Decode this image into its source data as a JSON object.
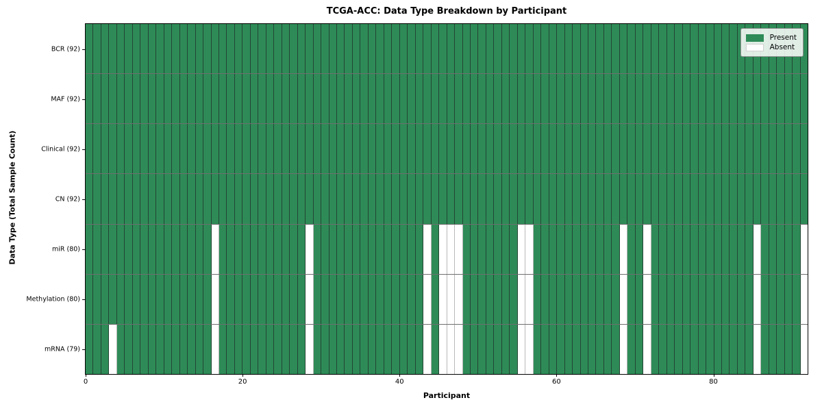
{
  "title": "TCGA-ACC: Data Type Breakdown by Participant",
  "x_axis_label": "Participant",
  "y_axis_label": "Data Type (Total Sample Count)",
  "legend": {
    "present_label": "Present",
    "absent_label": "Absent"
  },
  "colors": {
    "present": "#2e8b57",
    "absent": "#ffffff",
    "present_cell_edge": "#234434",
    "absent_cell_edge": "#b8b8b8",
    "row_divider": "#6e6e6e",
    "axis_spine": "#000000"
  },
  "chart_data": {
    "type": "heatmap",
    "title": "TCGA-ACC: Data Type Breakdown by Participant",
    "xlabel": "Participant",
    "ylabel": "Data Type (Total Sample Count)",
    "legend_entries": [
      "Present",
      "Absent"
    ],
    "legend_position": "upper right",
    "n_participants": 92,
    "x_range": [
      0,
      92
    ],
    "x_ticks": [
      0,
      20,
      40,
      60,
      80
    ],
    "cell_states": [
      "present",
      "absent"
    ],
    "rows": [
      {
        "label": "BCR (92)",
        "datatype": "BCR",
        "present_count": 92,
        "absent_participants": []
      },
      {
        "label": "MAF (92)",
        "datatype": "MAF",
        "present_count": 92,
        "absent_participants": []
      },
      {
        "label": "Clinical (92)",
        "datatype": "Clinical",
        "present_count": 92,
        "absent_participants": []
      },
      {
        "label": "CN (92)",
        "datatype": "CN",
        "present_count": 92,
        "absent_participants": []
      },
      {
        "label": "miR (80)",
        "datatype": "miR",
        "present_count": 80,
        "absent_participants": [
          16,
          28,
          43,
          45,
          46,
          47,
          55,
          56,
          68,
          71,
          85,
          91
        ]
      },
      {
        "label": "Methylation (80)",
        "datatype": "Methylation",
        "present_count": 80,
        "absent_participants": [
          16,
          28,
          43,
          45,
          46,
          47,
          55,
          56,
          68,
          71,
          85,
          91
        ]
      },
      {
        "label": "mRNA (79)",
        "datatype": "mRNA",
        "present_count": 79,
        "absent_participants": [
          3,
          16,
          28,
          43,
          45,
          46,
          47,
          55,
          56,
          68,
          71,
          85,
          91
        ]
      }
    ]
  }
}
